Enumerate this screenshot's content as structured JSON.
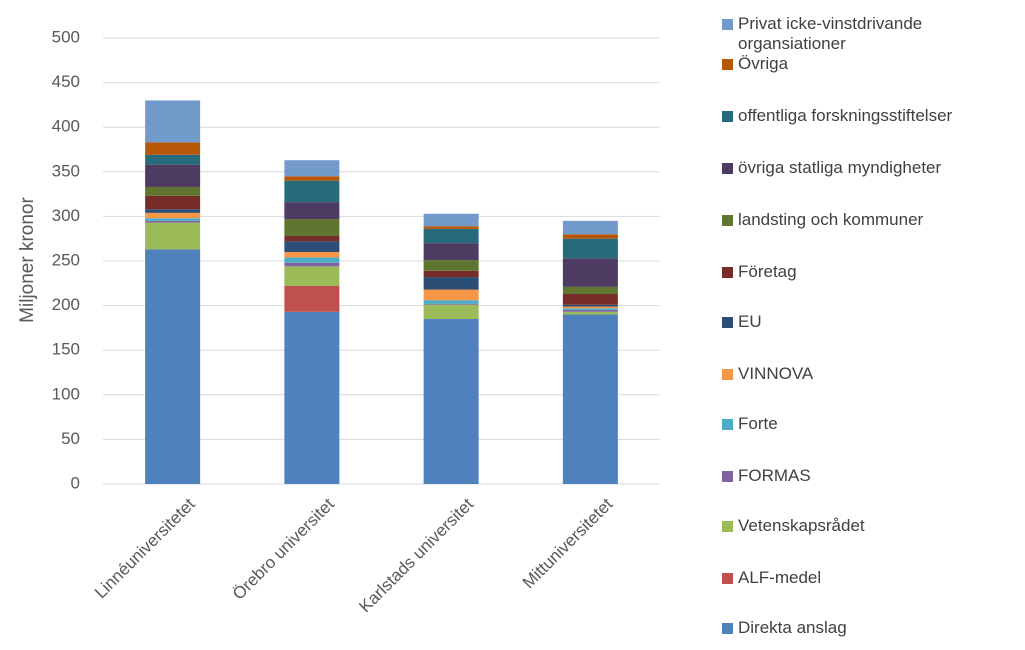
{
  "chart_data": {
    "type": "stacked_bar",
    "y_label": "Miljoner kronor",
    "categories": [
      "Linnéuniversitetet",
      "Örebro universitet",
      "Karlstads universitet",
      "Mittuniversitetet"
    ],
    "ylim": [
      0,
      500
    ],
    "yticks": [
      0,
      50,
      100,
      150,
      200,
      250,
      300,
      350,
      400,
      450,
      500
    ],
    "grid": true,
    "series": [
      {
        "name": "Direkta anslag",
        "color": "#4f81bd",
        "values": [
          263,
          193,
          185,
          190
        ]
      },
      {
        "name": "ALF-medel",
        "color": "#c0504d",
        "values": [
          0,
          29,
          0,
          0
        ]
      },
      {
        "name": "Vetenskapsrådet",
        "color": "#9bbb59",
        "values": [
          30,
          22,
          16,
          3
        ]
      },
      {
        "name": "FORMAS",
        "color": "#8064a2",
        "values": [
          2,
          4,
          1,
          2
        ]
      },
      {
        "name": "Forte",
        "color": "#4bacc6",
        "values": [
          3,
          6,
          4,
          2
        ]
      },
      {
        "name": "VINNOVA",
        "color": "#f79646",
        "values": [
          6,
          6,
          12,
          2
        ]
      },
      {
        "name": "EU",
        "color": "#2c4d75",
        "values": [
          4,
          12,
          14,
          2
        ]
      },
      {
        "name": "Företag",
        "color": "#772c2a",
        "values": [
          15,
          6,
          7,
          12
        ]
      },
      {
        "name": "landsting och kommuner",
        "color": "#5f7530",
        "values": [
          10,
          19,
          12,
          8
        ]
      },
      {
        "name": "övriga statliga myndigheter",
        "color": "#4d3b62",
        "values": [
          25,
          19,
          19,
          32
        ]
      },
      {
        "name": "offentliga forskningsstiftelser",
        "color": "#276a7c",
        "values": [
          11,
          24,
          16,
          22
        ]
      },
      {
        "name": "Övriga",
        "color": "#b65708",
        "values": [
          14,
          5,
          3,
          5
        ]
      },
      {
        "name": "Privat icke-vinstdrivande organsiationer",
        "color": "#729aca",
        "values": [
          47,
          18,
          14,
          15
        ]
      }
    ]
  }
}
